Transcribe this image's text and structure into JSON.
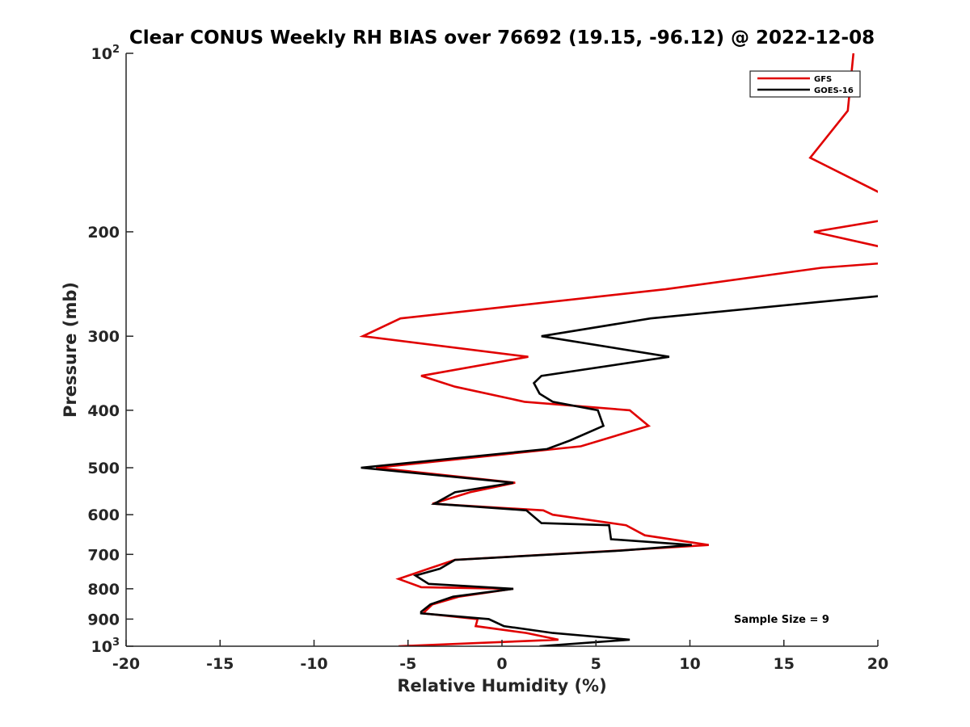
{
  "chart_data": {
    "type": "line",
    "title": "Clear CONUS Weekly RH BIAS over 76692 (19.15, -96.12) @ 2022-12-08",
    "xlabel": "Relative Humidity (%)",
    "ylabel": "Pressure (mb)",
    "xlim": [
      -20,
      20
    ],
    "ylim": [
      100,
      1000
    ],
    "yscale": "log",
    "y_reversed": true,
    "grid": false,
    "legend_position": "top-right",
    "x_ticks": [
      {
        "value": -20,
        "label": "-20"
      },
      {
        "value": -15,
        "label": "-15"
      },
      {
        "value": -10,
        "label": "-10"
      },
      {
        "value": -5,
        "label": "-5"
      },
      {
        "value": 0,
        "label": "0"
      },
      {
        "value": 5,
        "label": "5"
      },
      {
        "value": 10,
        "label": "10"
      },
      {
        "value": 15,
        "label": "15"
      },
      {
        "value": 20,
        "label": "20"
      }
    ],
    "y_ticks": [
      {
        "value": 100,
        "base": "10",
        "exp": "2"
      },
      {
        "value": 200,
        "base": "200",
        "exp": ""
      },
      {
        "value": 300,
        "base": "300",
        "exp": ""
      },
      {
        "value": 400,
        "base": "400",
        "exp": ""
      },
      {
        "value": 500,
        "base": "500",
        "exp": ""
      },
      {
        "value": 600,
        "base": "600",
        "exp": ""
      },
      {
        "value": 700,
        "base": "700",
        "exp": ""
      },
      {
        "value": 800,
        "base": "800",
        "exp": ""
      },
      {
        "value": 900,
        "base": "900",
        "exp": ""
      },
      {
        "value": 1000,
        "base": "10",
        "exp": "3"
      }
    ],
    "series": [
      {
        "name": "GFS",
        "color": "#e00000",
        "points": [
          [
            18.7,
            100
          ],
          [
            18.4,
            125
          ],
          [
            16.4,
            150
          ],
          [
            20.6,
            175
          ],
          [
            20.8,
            190
          ],
          [
            16.6,
            200
          ],
          [
            21.0,
            215
          ],
          [
            21.0,
            225
          ],
          [
            17.0,
            230
          ],
          [
            8.7,
            250
          ],
          [
            -5.4,
            280
          ],
          [
            -7.4,
            300
          ],
          [
            1.4,
            325
          ],
          [
            -4.3,
            350
          ],
          [
            -2.5,
            365
          ],
          [
            1.2,
            387
          ],
          [
            6.8,
            400
          ],
          [
            7.8,
            425
          ],
          [
            4.2,
            460
          ],
          [
            -6.7,
            500
          ],
          [
            0.7,
            530
          ],
          [
            -1.7,
            550
          ],
          [
            -3.7,
            575
          ],
          [
            2.2,
            590
          ],
          [
            2.7,
            600
          ],
          [
            6.6,
            625
          ],
          [
            7.6,
            650
          ],
          [
            11.0,
            675
          ],
          [
            6.1,
            690
          ],
          [
            -2.5,
            715
          ],
          [
            -3.9,
            740
          ],
          [
            -5.5,
            770
          ],
          [
            -4.3,
            795
          ],
          [
            0.6,
            800
          ],
          [
            -2.3,
            825
          ],
          [
            -3.7,
            850
          ],
          [
            -4.2,
            880
          ],
          [
            -1.3,
            900
          ],
          [
            -1.4,
            925
          ],
          [
            1.3,
            950
          ],
          [
            3.0,
            975
          ],
          [
            -5.5,
            1000
          ]
        ]
      },
      {
        "name": "GOES-16",
        "color": "#000000",
        "points": [
          [
            21.0,
            255
          ],
          [
            7.9,
            280
          ],
          [
            2.1,
            300
          ],
          [
            8.9,
            325
          ],
          [
            2.1,
            350
          ],
          [
            1.7,
            360
          ],
          [
            2.0,
            375
          ],
          [
            2.7,
            387
          ],
          [
            5.1,
            400
          ],
          [
            5.4,
            425
          ],
          [
            3.6,
            450
          ],
          [
            2.4,
            465
          ],
          [
            -7.5,
            500
          ],
          [
            0.6,
            530
          ],
          [
            -2.5,
            550
          ],
          [
            -3.6,
            575
          ],
          [
            1.3,
            590
          ],
          [
            2.1,
            620
          ],
          [
            5.7,
            625
          ],
          [
            5.8,
            660
          ],
          [
            10.1,
            675
          ],
          [
            6.3,
            690
          ],
          [
            -2.5,
            715
          ],
          [
            -3.3,
            740
          ],
          [
            -4.6,
            760
          ],
          [
            -3.9,
            785
          ],
          [
            0.6,
            800
          ],
          [
            -2.6,
            825
          ],
          [
            -3.8,
            850
          ],
          [
            -4.3,
            875
          ],
          [
            -4.3,
            880
          ],
          [
            -0.7,
            900
          ],
          [
            0.1,
            925
          ],
          [
            2.7,
            950
          ],
          [
            6.8,
            975
          ],
          [
            2.0,
            1000
          ]
        ]
      }
    ],
    "annotation": "Sample Size = 9"
  }
}
